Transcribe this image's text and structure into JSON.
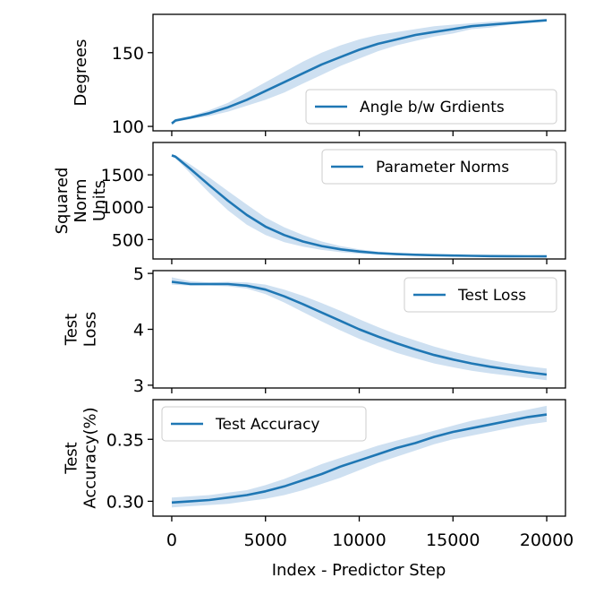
{
  "chart_data": {
    "type": "line",
    "shared_x": {
      "label": "Index - Predictor Step",
      "range": [
        -1000,
        21000
      ],
      "ticks": [
        0,
        5000,
        10000,
        15000,
        20000
      ],
      "tick_labels": [
        "0",
        "5000",
        "10000",
        "15000",
        "20000"
      ]
    },
    "colors": {
      "line": "#1f77b4",
      "band": "#c6dbef"
    },
    "panels": [
      {
        "ylabel": [
          "Degrees"
        ],
        "ylim": [
          97,
          176
        ],
        "yticks": [
          100,
          150
        ],
        "legend": "Angle b/w Grdients",
        "legend_loc": "lower-right",
        "series": [
          {
            "name": "Angle b/w Grdients",
            "x": [
              0,
              200,
              1000,
              2000,
              3000,
              4000,
              5000,
              6000,
              7000,
              8000,
              9000,
              10000,
              11000,
              12000,
              13000,
              14000,
              15000,
              16000,
              17000,
              18000,
              19000,
              20000
            ],
            "y": [
              102,
              104,
              106,
              109,
              113,
              118,
              124,
              130,
              136,
              142,
              147,
              152,
              156,
              159,
              162,
              164,
              166,
              168,
              169,
              170,
              171,
              172
            ],
            "band_low": [
              101,
              103,
              105,
              107,
              110,
              114,
              118,
              123,
              129,
              135,
              141,
              146,
              151,
              155,
              158,
              161,
              163,
              166,
              167,
              169,
              170,
              171
            ],
            "band_high": [
              103,
              105,
              107,
              111,
              116,
              123,
              130,
              137,
              144,
              150,
              155,
              159,
              162,
              164,
              166,
              168,
              169,
              170,
              171,
              171.5,
              172,
              172.5
            ]
          }
        ]
      },
      {
        "ylabel": [
          "Squared",
          "Norm",
          "Units"
        ],
        "ylim": [
          200,
          2000
        ],
        "yticks": [
          500,
          1000,
          1500
        ],
        "legend": "Parameter Norms",
        "legend_loc": "upper-right",
        "series": [
          {
            "name": "Parameter Norms",
            "x": [
              0,
              200,
              1000,
              2000,
              3000,
              4000,
              5000,
              6000,
              7000,
              8000,
              9000,
              10000,
              11000,
              12000,
              13000,
              14000,
              15000,
              16000,
              17000,
              18000,
              19000,
              20000
            ],
            "y": [
              1800,
              1780,
              1590,
              1340,
              1100,
              880,
              700,
              570,
              470,
              400,
              350,
              315,
              290,
              275,
              265,
              258,
              252,
              248,
              245,
              243,
              241,
              240
            ],
            "band_low": [
              1790,
              1760,
              1520,
              1220,
              950,
              730,
              570,
              460,
              390,
              340,
              305,
              282,
              268,
              258,
              252,
              248,
              244,
              241,
              239,
              237,
              236,
              235
            ],
            "band_high": [
              1810,
              1800,
              1660,
              1460,
              1250,
              1040,
              840,
              690,
              570,
              470,
              400,
              350,
              315,
              295,
              282,
              272,
              264,
              258,
              254,
              250,
              247,
              245
            ]
          }
        ]
      },
      {
        "ylabel": [
          "Test",
          "Loss"
        ],
        "ylim": [
          2.95,
          5.05
        ],
        "yticks": [
          3,
          4,
          5
        ],
        "legend": "Test Loss",
        "legend_loc": "upper-right",
        "series": [
          {
            "name": "Test Loss",
            "x": [
              0,
              1000,
              2000,
              3000,
              4000,
              5000,
              6000,
              7000,
              8000,
              9000,
              10000,
              11000,
              12000,
              13000,
              14000,
              15000,
              16000,
              17000,
              18000,
              19000,
              20000
            ],
            "y": [
              4.85,
              4.81,
              4.81,
              4.81,
              4.78,
              4.71,
              4.59,
              4.45,
              4.3,
              4.15,
              4.0,
              3.87,
              3.75,
              3.64,
              3.54,
              3.46,
              3.39,
              3.33,
              3.28,
              3.23,
              3.19
            ],
            "band_low": [
              4.8,
              4.78,
              4.78,
              4.77,
              4.73,
              4.63,
              4.48,
              4.31,
              4.14,
              3.98,
              3.83,
              3.7,
              3.58,
              3.48,
              3.39,
              3.32,
              3.26,
              3.21,
              3.17,
              3.13,
              3.09
            ],
            "band_high": [
              4.93,
              4.86,
              4.84,
              4.85,
              4.84,
              4.8,
              4.71,
              4.6,
              4.47,
              4.33,
              4.18,
              4.04,
              3.91,
              3.8,
              3.69,
              3.6,
              3.52,
              3.45,
              3.39,
              3.34,
              3.3
            ]
          }
        ]
      },
      {
        "ylabel": [
          "Test",
          "Accuracy(%)"
        ],
        "ylim": [
          0.288,
          0.382
        ],
        "yticks": [
          0.3,
          0.35
        ],
        "ytick_labels": [
          "0.30",
          "0.35"
        ],
        "legend": "Test Accuracy",
        "legend_loc": "upper-left",
        "series": [
          {
            "name": "Test Accuracy",
            "x": [
              0,
              1000,
              2000,
              3000,
              4000,
              5000,
              6000,
              7000,
              8000,
              9000,
              10000,
              11000,
              12000,
              13000,
              14000,
              15000,
              16000,
              17000,
              18000,
              19000,
              20000
            ],
            "y": [
              0.299,
              0.3,
              0.301,
              0.303,
              0.305,
              0.308,
              0.312,
              0.317,
              0.322,
              0.328,
              0.333,
              0.338,
              0.343,
              0.347,
              0.352,
              0.356,
              0.359,
              0.362,
              0.365,
              0.368,
              0.37
            ],
            "band_low": [
              0.295,
              0.296,
              0.297,
              0.298,
              0.3,
              0.302,
              0.305,
              0.309,
              0.314,
              0.319,
              0.325,
              0.331,
              0.336,
              0.341,
              0.346,
              0.35,
              0.353,
              0.356,
              0.359,
              0.362,
              0.364
            ],
            "band_high": [
              0.303,
              0.304,
              0.305,
              0.307,
              0.309,
              0.313,
              0.318,
              0.324,
              0.33,
              0.335,
              0.34,
              0.345,
              0.349,
              0.353,
              0.357,
              0.361,
              0.365,
              0.368,
              0.371,
              0.374,
              0.377
            ]
          }
        ]
      }
    ]
  }
}
